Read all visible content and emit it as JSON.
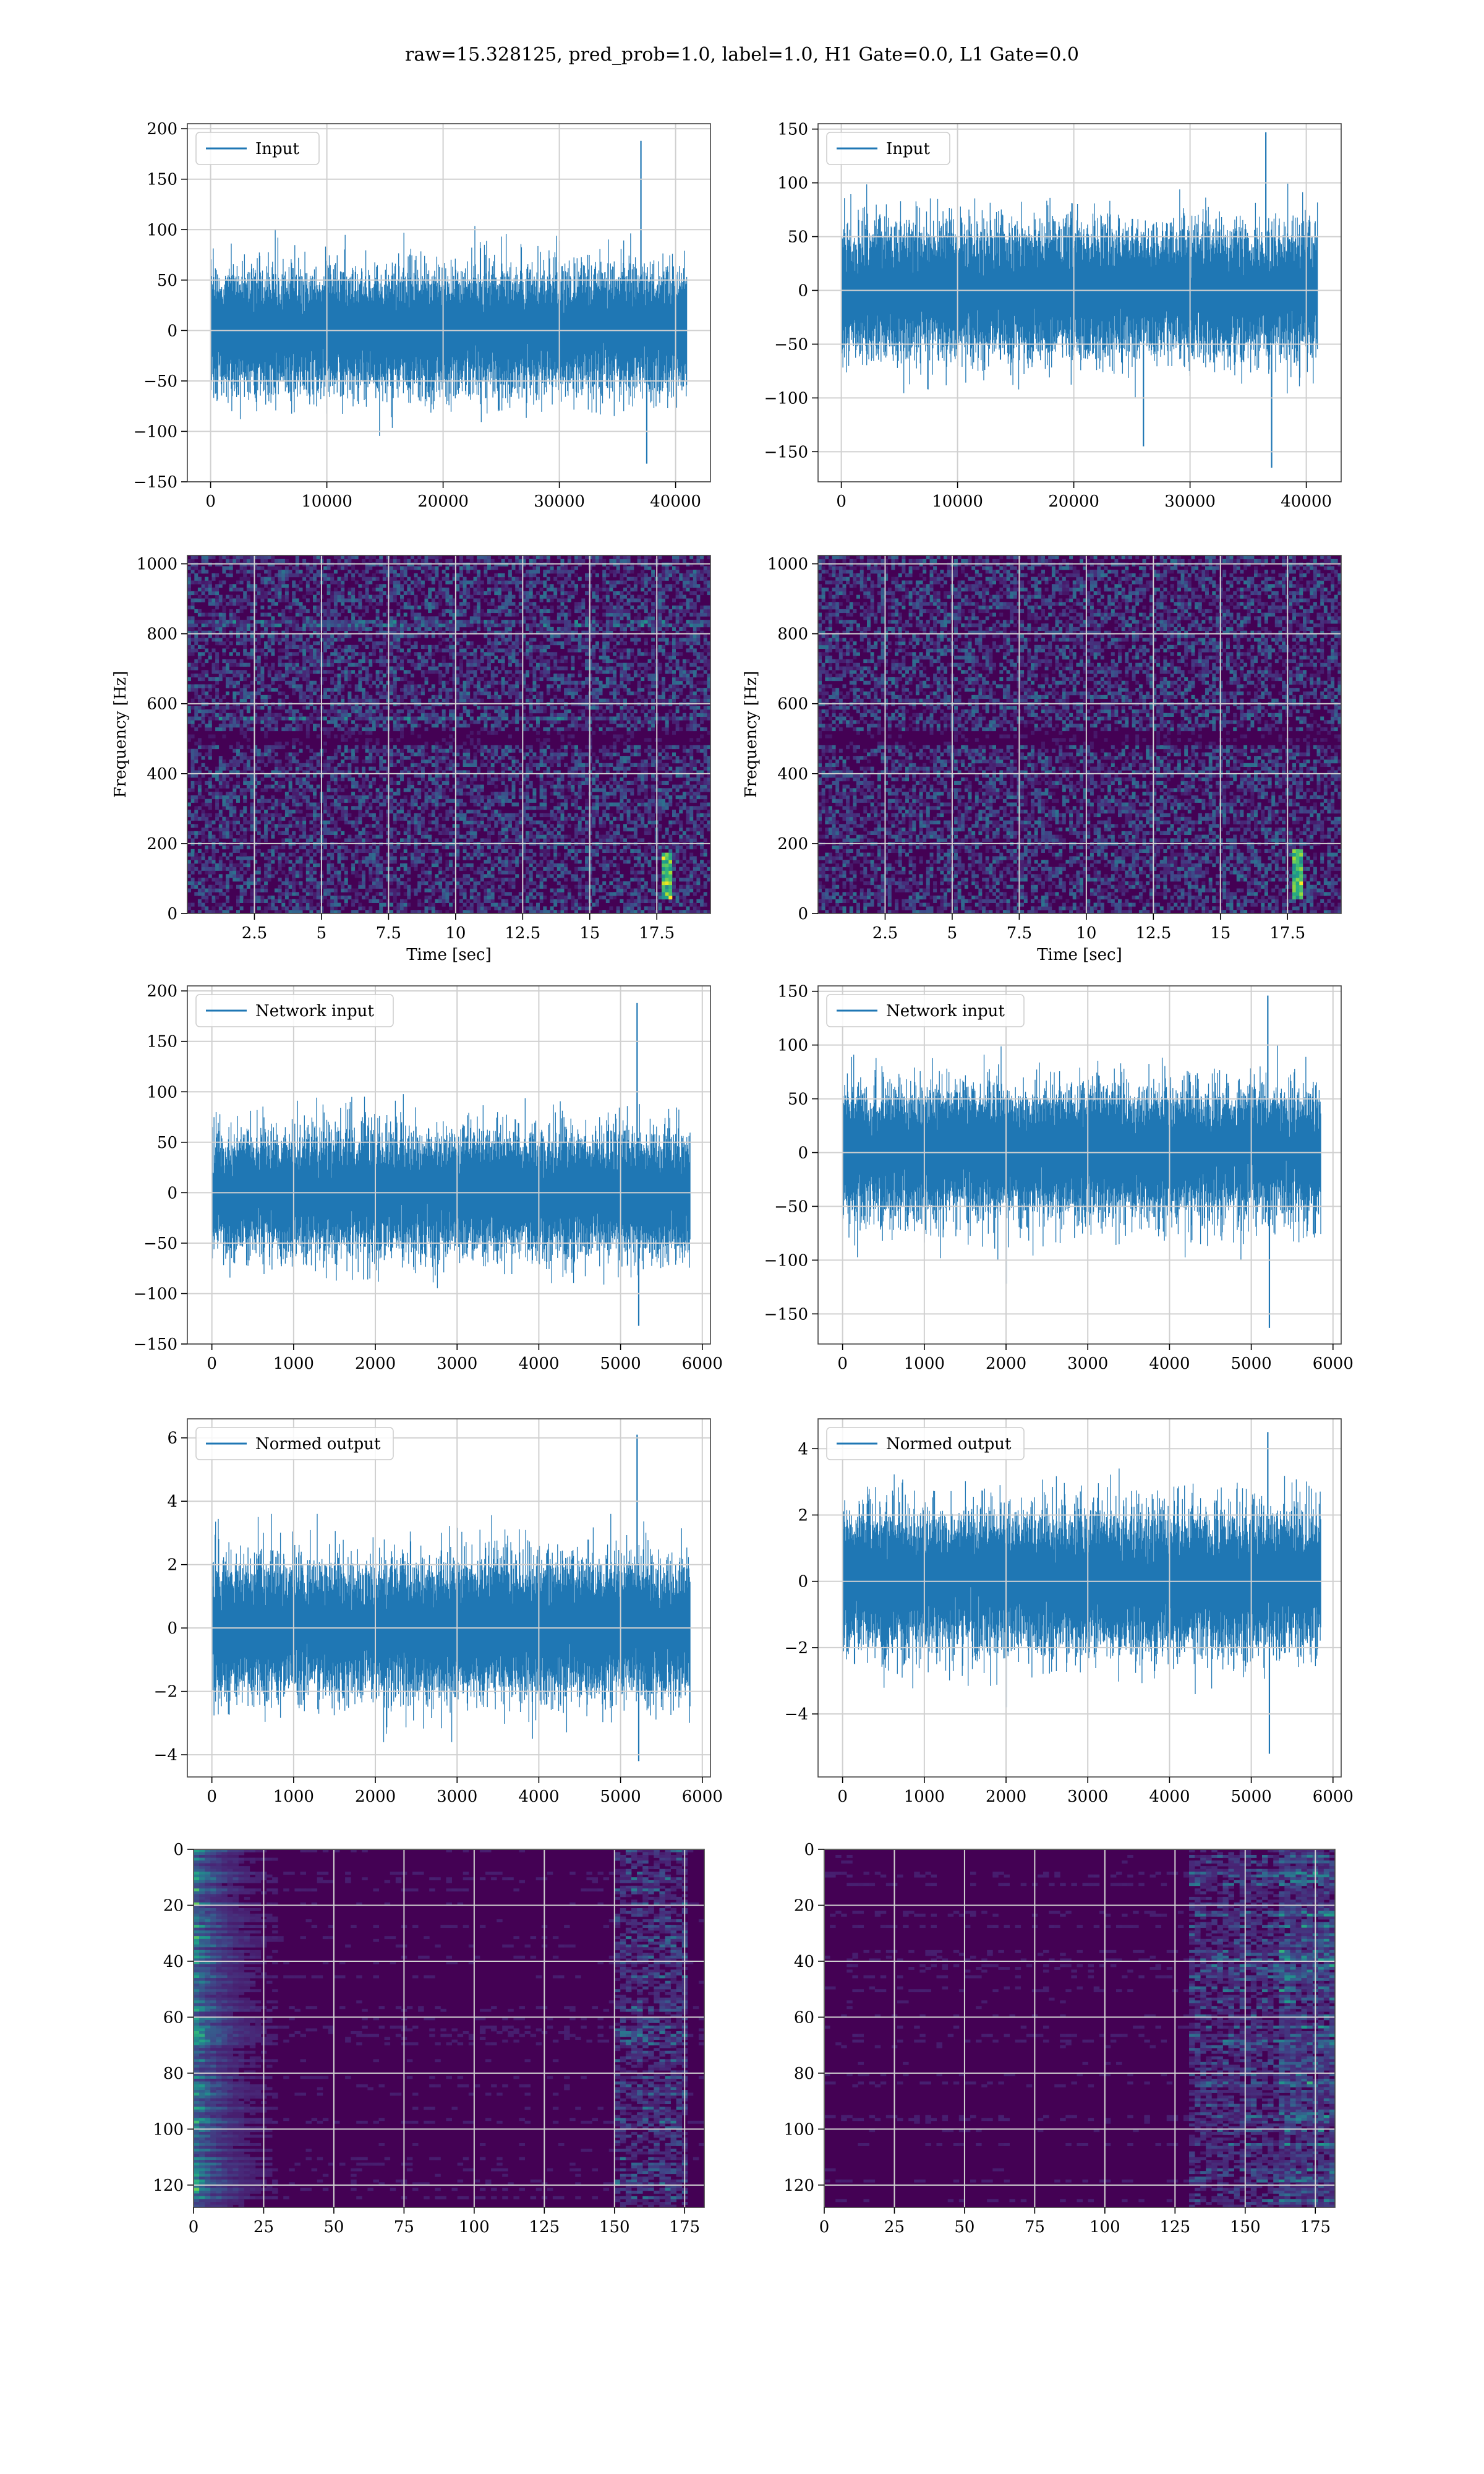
{
  "title": "raw=15.328125, pred_prob=1.0, label=1.0, H1 Gate=0.0, L1 Gate=0.0",
  "colors": {
    "line": "#1f77b4",
    "grid": "#d0d0d0",
    "axis": "#444444",
    "viridis": [
      "#440154",
      "#482777",
      "#3e4a89",
      "#31688e",
      "#26828e",
      "#1f9e89",
      "#35b779",
      "#6ece58",
      "#b5de2b",
      "#fde725"
    ]
  },
  "chart_data": [
    {
      "id": "input-h1",
      "type": "line",
      "legend": "Input",
      "legend_position": "upper left",
      "grid": true,
      "xlim": [
        -2000,
        43000
      ],
      "ylim": [
        -150,
        205
      ],
      "xticks": [
        0,
        10000,
        20000,
        30000,
        40000
      ],
      "yticks": [
        -150,
        -100,
        -50,
        0,
        50,
        100,
        150,
        200
      ],
      "series": {
        "n": 40960,
        "x_max": 40960,
        "noise_level": 27,
        "max_amp": 105,
        "peaks": [
          {
            "x": 37000,
            "y": 188
          },
          {
            "x": 37500,
            "y": -132
          }
        ]
      }
    },
    {
      "id": "input-l1",
      "type": "line",
      "legend": "Input",
      "legend_position": "upper left",
      "grid": true,
      "xlim": [
        -2000,
        43000
      ],
      "ylim": [
        -178,
        155
      ],
      "xticks": [
        0,
        10000,
        20000,
        30000,
        40000
      ],
      "yticks": [
        -150,
        -100,
        -50,
        0,
        50,
        100,
        150
      ],
      "series": {
        "n": 40960,
        "x_max": 40960,
        "noise_level": 27,
        "max_amp": 100,
        "peaks": [
          {
            "x": 36500,
            "y": 147
          },
          {
            "x": 37000,
            "y": -165
          },
          {
            "x": 26000,
            "y": -145
          }
        ]
      }
    },
    {
      "id": "spectrogram-h1",
      "type": "heatmap",
      "grid": true,
      "xlim": [
        0,
        19.5
      ],
      "ylim": [
        0,
        1024
      ],
      "xticks": [
        2.5,
        5.0,
        7.5,
        10.0,
        12.5,
        15.0,
        17.5
      ],
      "yticks": [
        0,
        200,
        400,
        600,
        800,
        1000
      ],
      "xlabel": "Time [sec]",
      "ylabel": "Frequency [Hz]",
      "features": {
        "dark_bands_hz": [
          500
        ],
        "bright_lines_hz": [
          560,
          830
        ],
        "chirp": {
          "t": 17.9,
          "f_low": 40,
          "f_high": 170
        }
      }
    },
    {
      "id": "spectrogram-l1",
      "type": "heatmap",
      "grid": true,
      "xlim": [
        0,
        19.5
      ],
      "ylim": [
        0,
        1024
      ],
      "xticks": [
        2.5,
        5.0,
        7.5,
        10.0,
        12.5,
        15.0,
        17.5
      ],
      "yticks": [
        0,
        200,
        400,
        600,
        800,
        1000
      ],
      "xlabel": "Time [sec]",
      "ylabel": "Frequency [Hz]",
      "features": {
        "dark_bands_hz": [
          500
        ],
        "bright_lines_hz": [],
        "chirp": {
          "t": 17.9,
          "f_low": 40,
          "f_high": 180
        }
      }
    },
    {
      "id": "network-input-h1",
      "type": "line",
      "legend": "Network input",
      "legend_position": "upper left",
      "grid": true,
      "xlim": [
        -300,
        6100
      ],
      "ylim": [
        -150,
        205
      ],
      "xticks": [
        0,
        1000,
        2000,
        3000,
        4000,
        5000,
        6000
      ],
      "yticks": [
        -150,
        -100,
        -50,
        0,
        50,
        100,
        150,
        200
      ],
      "series": {
        "n": 5850,
        "x_max": 5850,
        "noise_level": 27,
        "max_amp": 110,
        "peaks": [
          {
            "x": 5200,
            "y": 188
          },
          {
            "x": 5220,
            "y": -132
          }
        ]
      }
    },
    {
      "id": "network-input-l1",
      "type": "line",
      "legend": "Network input",
      "legend_position": "upper left",
      "grid": true,
      "xlim": [
        -300,
        6100
      ],
      "ylim": [
        -178,
        155
      ],
      "xticks": [
        0,
        1000,
        2000,
        3000,
        4000,
        5000,
        6000
      ],
      "yticks": [
        -150,
        -100,
        -50,
        0,
        50,
        100,
        150
      ],
      "series": {
        "n": 5850,
        "x_max": 5850,
        "noise_level": 27,
        "max_amp": 100,
        "peaks": [
          {
            "x": 5200,
            "y": 146
          },
          {
            "x": 5220,
            "y": -163
          },
          {
            "x": 2000,
            "y": -122
          }
        ]
      }
    },
    {
      "id": "normed-output-h1",
      "type": "line",
      "legend": "Normed output",
      "legend_position": "upper left",
      "grid": true,
      "xlim": [
        -300,
        6100
      ],
      "ylim": [
        -4.7,
        6.6
      ],
      "xticks": [
        0,
        1000,
        2000,
        3000,
        4000,
        5000,
        6000
      ],
      "yticks": [
        -4,
        -2,
        0,
        2,
        4,
        6
      ],
      "series": {
        "n": 5850,
        "x_max": 5850,
        "noise_level": 0.95,
        "max_amp": 3.6,
        "peaks": [
          {
            "x": 5200,
            "y": 6.1
          },
          {
            "x": 5220,
            "y": -4.2
          }
        ]
      }
    },
    {
      "id": "normed-output-l1",
      "type": "line",
      "legend": "Normed output",
      "legend_position": "upper left",
      "grid": true,
      "xlim": [
        -300,
        6100
      ],
      "ylim": [
        -5.9,
        4.9
      ],
      "xticks": [
        0,
        1000,
        2000,
        3000,
        4000,
        5000,
        6000
      ],
      "yticks": [
        -4,
        -2,
        0,
        2,
        4
      ],
      "series": {
        "n": 5850,
        "x_max": 5850,
        "noise_level": 0.95,
        "max_amp": 3.4,
        "peaks": [
          {
            "x": 5200,
            "y": 4.5
          },
          {
            "x": 5220,
            "y": -5.2
          },
          {
            "x": 2000,
            "y": -3.8
          }
        ]
      }
    },
    {
      "id": "feature-map-h1",
      "type": "heatmap",
      "grid": true,
      "xlim": [
        0,
        182
      ],
      "ylim": [
        128,
        0
      ],
      "xticks": [
        0,
        25,
        50,
        75,
        100,
        125,
        150,
        175
      ],
      "yticks": [
        0,
        20,
        40,
        60,
        80,
        100,
        120
      ],
      "features": {
        "rows": 128,
        "cols": 182,
        "bright_region": "left",
        "active_cols": [
          150,
          175
        ]
      }
    },
    {
      "id": "feature-map-l1",
      "type": "heatmap",
      "grid": true,
      "xlim": [
        0,
        182
      ],
      "ylim": [
        128,
        0
      ],
      "xticks": [
        0,
        25,
        50,
        75,
        100,
        125,
        150,
        175
      ],
      "yticks": [
        0,
        20,
        40,
        60,
        80,
        100,
        120
      ],
      "features": {
        "rows": 128,
        "cols": 182,
        "bright_region": "right",
        "active_cols": [
          130,
          182
        ]
      }
    }
  ]
}
